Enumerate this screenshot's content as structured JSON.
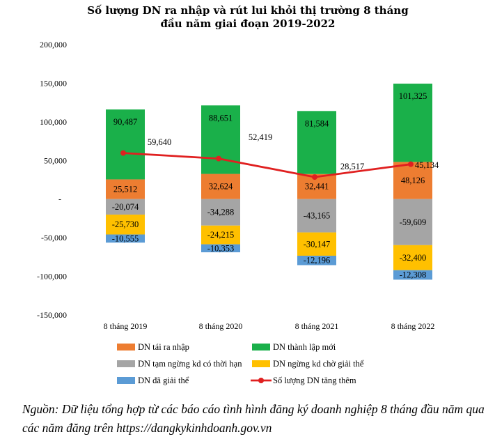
{
  "chart_data": {
    "type": "bar",
    "stacked": true,
    "title_lines": [
      "Số lượng DN ra nhập và rút lui khỏi thị trường 8 tháng",
      "đầu năm giai đoạn 2019-2022"
    ],
    "categories": [
      "8 tháng 2019",
      "8 tháng 2020",
      "8 tháng 2021",
      "8 tháng 2022"
    ],
    "ylim": [
      -150000,
      200000
    ],
    "yticks": [
      -150000,
      -100000,
      -50000,
      0,
      50000,
      100000,
      150000,
      200000
    ],
    "ytick_labels": [
      "-150,000",
      "-100,000",
      "-50,000",
      "-",
      "50,000",
      "100,000",
      "150,000",
      "200,000"
    ],
    "series": [
      {
        "name": "DN tái ra nhập",
        "color": "#ED7D31",
        "values": [
          25512,
          32624,
          32441,
          48126
        ],
        "labels": [
          "25,512",
          "32,624",
          "32,441",
          "48,126"
        ]
      },
      {
        "name": "DN thành lập mới",
        "color": "#1AB04A",
        "values": [
          90487,
          88651,
          81584,
          101325
        ],
        "labels": [
          "90,487",
          "88,651",
          "81,584",
          "101,325"
        ]
      },
      {
        "name": "DN tạm ngừng kd có thời hạn",
        "color": "#A5A5A5",
        "values": [
          -20074,
          -34288,
          -43165,
          -59609
        ],
        "labels": [
          "-20,074",
          "-34,288",
          "-43,165",
          "-59,609"
        ]
      },
      {
        "name": "DN ngừng kd chờ giải thể",
        "color": "#FFC000",
        "values": [
          -25730,
          -24215,
          -30147,
          -32400
        ],
        "labels": [
          "-25,730",
          "-24,215",
          "-30,147",
          "-32,400"
        ]
      },
      {
        "name": "DN đã giải thể",
        "color": "#5B9BD5",
        "values": [
          -10555,
          -10353,
          -12196,
          -12308
        ],
        "labels": [
          "-10,555",
          "-10,353",
          "-12,196",
          "-12,308"
        ]
      }
    ],
    "line_series": {
      "name": "Số lượng DN tăng thêm",
      "color": "#E02020",
      "values": [
        59640,
        52419,
        28517,
        45134
      ],
      "labels": [
        "59,640",
        "52,419",
        "28,517",
        "45,134"
      ]
    }
  },
  "source_note": "Nguồn: Dữ liệu tổng hợp từ các báo cáo tình hình đăng ký doanh nghiệp 8 tháng đầu năm qua các năm đăng trên https://dangkykinhdoanh.gov.vn"
}
